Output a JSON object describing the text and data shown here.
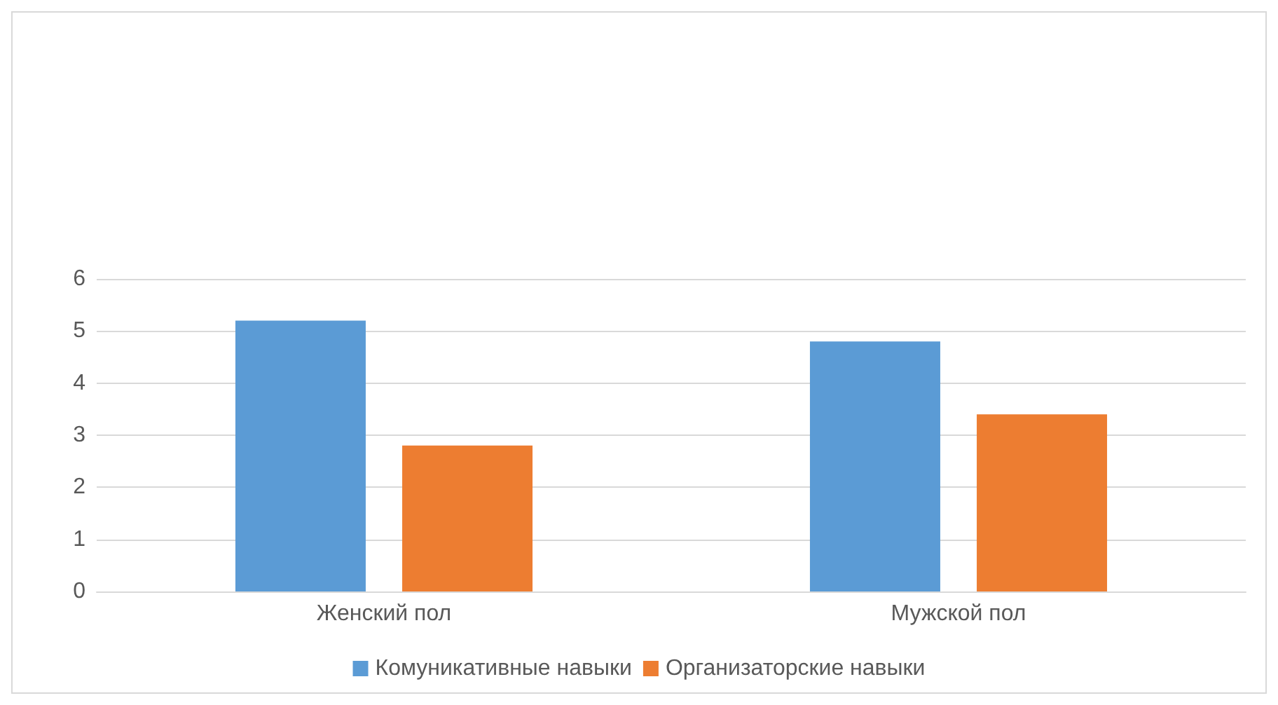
{
  "chart_data": {
    "type": "bar",
    "categories": [
      "Женский пол",
      "Мужской пол"
    ],
    "series": [
      {
        "name": "Комуникативные навыки",
        "color": "#5b9bd5",
        "values": [
          5.2,
          4.8
        ]
      },
      {
        "name": "Организаторские навыки",
        "color": "#ed7d31",
        "values": [
          2.8,
          3.4
        ]
      }
    ],
    "ylim": [
      0,
      6
    ],
    "yticks": [
      0,
      1,
      2,
      3,
      4,
      5,
      6
    ],
    "grid": "y",
    "legend": "bottom"
  }
}
